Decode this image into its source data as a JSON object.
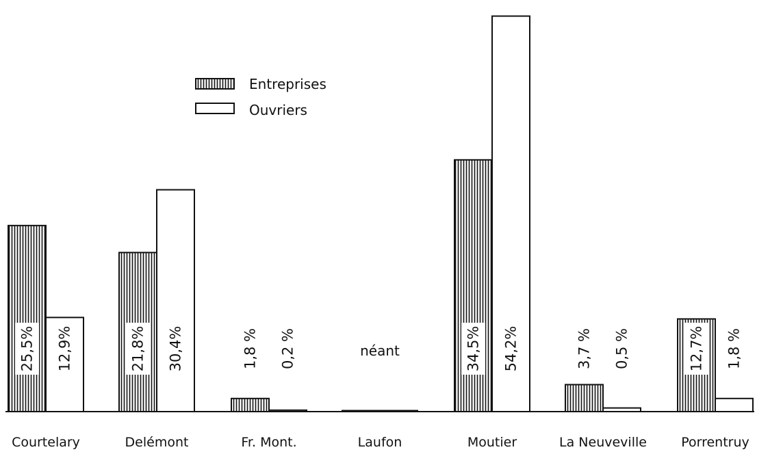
{
  "chart_data": {
    "type": "bar",
    "categories": [
      "Courtelary",
      "Delémont",
      "Fr. Mont.",
      "Laufon",
      "Moutier",
      "La Neuveville",
      "Porrentruy"
    ],
    "series": [
      {
        "name": "Entreprises",
        "values": [
          25.5,
          21.8,
          1.8,
          0,
          34.5,
          3.7,
          12.7
        ],
        "labels": [
          "25,5%",
          "21,8%",
          "1,8 %",
          "",
          "34,5%",
          "3,7 %",
          "12,7%"
        ]
      },
      {
        "name": "Ouvriers",
        "values": [
          12.9,
          30.4,
          0.2,
          0,
          54.2,
          0.5,
          1.8
        ],
        "labels": [
          "12,9%",
          "30,4%",
          "0,2 %",
          "",
          "54,2%",
          "0,5 %",
          "1,8 %"
        ]
      }
    ],
    "annotations": [
      {
        "category": "Laufon",
        "text": "néant"
      }
    ],
    "ylim": [
      0,
      55
    ],
    "grid": false,
    "legend": "top-left",
    "colors": {
      "bar_stroke": "#111111",
      "bar_fill": "#ffffff",
      "hatch": "#111111"
    }
  }
}
